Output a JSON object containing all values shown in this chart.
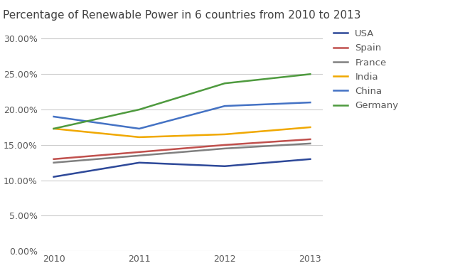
{
  "title": "Percentage of Renewable Power in 6 countries from 2010 to 2013",
  "years": [
    2010,
    2011,
    2012,
    2013
  ],
  "series": {
    "USA": [
      0.105,
      0.125,
      0.12,
      0.13
    ],
    "Spain": [
      0.13,
      0.14,
      0.15,
      0.158
    ],
    "France": [
      0.125,
      0.135,
      0.145,
      0.152
    ],
    "India": [
      0.173,
      0.161,
      0.165,
      0.175
    ],
    "China": [
      0.19,
      0.173,
      0.205,
      0.21
    ],
    "Germany": [
      0.173,
      0.2,
      0.237,
      0.25
    ]
  },
  "colors": {
    "USA": "#2e4999",
    "Spain": "#c0504d",
    "France": "#808080",
    "India": "#f0a800",
    "China": "#4472c4",
    "Germany": "#4e9a3e"
  },
  "ylim": [
    0.0,
    0.32
  ],
  "yticks": [
    0.0,
    0.05,
    0.1,
    0.15,
    0.2,
    0.25,
    0.3
  ],
  "background_color": "#ffffff",
  "grid_color": "#cccccc",
  "title_fontsize": 11,
  "legend_fontsize": 9.5,
  "tick_fontsize": 9,
  "legend_text_color": "#595959"
}
